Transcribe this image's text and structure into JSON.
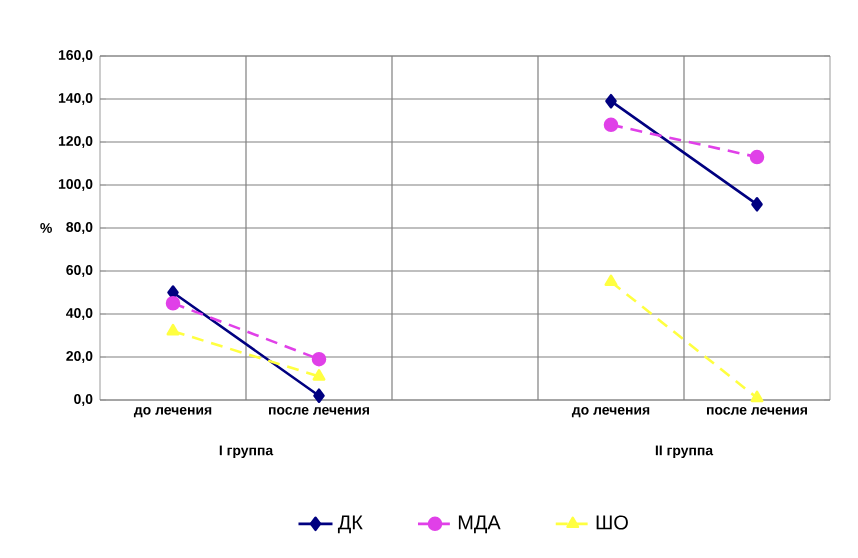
{
  "chart_data": {
    "type": "line",
    "categories": [
      "до лечения",
      "после лечения",
      null,
      "до лечения",
      "после лечения"
    ],
    "ylabel": "%",
    "annotations": [
      "I группа",
      "II группа"
    ],
    "series": [
      {
        "name": "ДК",
        "color": "#000080",
        "values": [
          50,
          2,
          null,
          139,
          91
        ],
        "marker": "diamond",
        "line_style": "solid"
      },
      {
        "name": "МДА",
        "color": "#e040e8",
        "values": [
          45,
          19,
          null,
          128,
          113
        ],
        "marker": "circle",
        "line_style": "dashed"
      },
      {
        "name": "ШО",
        "color": "#ffff40",
        "values": [
          32,
          11,
          null,
          55,
          1
        ],
        "marker": "triangle",
        "line_style": "dashed"
      }
    ],
    "ylim": [
      0,
      160
    ],
    "yticks": [
      {
        "value": 0,
        "label": "0,0"
      },
      {
        "value": 20,
        "label": "20,0"
      },
      {
        "value": 40,
        "label": "40,0"
      },
      {
        "value": 60,
        "label": "60,0"
      },
      {
        "value": 80,
        "label": "80,0"
      },
      {
        "value": 100,
        "label": "100,0"
      },
      {
        "value": 120,
        "label": "120,0"
      },
      {
        "value": 140,
        "label": "140,0"
      },
      {
        "value": 160,
        "label": "160,0"
      }
    ],
    "grid": true,
    "legend": "bottom"
  }
}
